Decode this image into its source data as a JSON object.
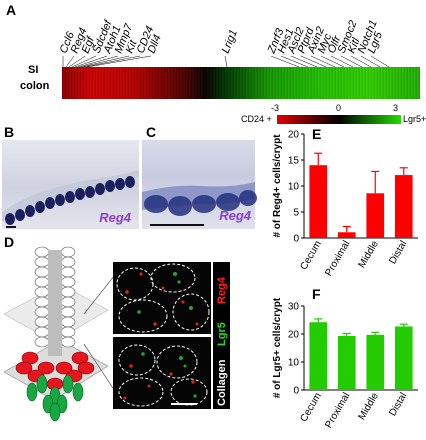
{
  "panels": {
    "A": "A",
    "B": "B",
    "C": "C",
    "D": "D",
    "E": "E",
    "F": "F"
  },
  "heatmap": {
    "row_si": "SI",
    "row_colon": "colon",
    "genes_left": [
      "Ccl6",
      "Reg4",
      "Egf",
      "Sdcdef",
      "Atoh1",
      "Mmp7",
      "Kit",
      "CD24",
      "Dll4"
    ],
    "gene_mid": "Lrig1",
    "genes_right": [
      "Znrf3",
      "Hes1",
      "Ascl2",
      "Ptprd",
      "Axin2",
      "Myc",
      "Olfr",
      "Smoc2",
      "Kitl",
      "Notch1",
      "Lgr5"
    ],
    "scale_left_label": "CD24 +",
    "scale_right_label": "Lgr5+",
    "scale_min": "-3",
    "scale_mid": "0",
    "scale_max": "3",
    "colors": {
      "low": "#d10000",
      "mid": "#000000",
      "high": "#22c400"
    }
  },
  "micrographs": {
    "B_label": "Reg4",
    "C_label": "Reg4",
    "D_channels": [
      "Reg4",
      "Lgr5",
      "Collagen"
    ],
    "D_channel_colors": [
      "#ff2020",
      "#22dd22",
      "#ffffff"
    ]
  },
  "chart_data": [
    {
      "type": "bar",
      "panel": "E",
      "categories": [
        "Cecum",
        "Proximal",
        "Middle",
        "Distal"
      ],
      "values": [
        14.0,
        1.1,
        8.6,
        12.1
      ],
      "errors": [
        2.3,
        1.1,
        4.2,
        1.4
      ],
      "ylabel": "# of Reg4+ cells/crypt",
      "ylim": [
        0,
        20
      ],
      "yticks": [
        0,
        5,
        10,
        15,
        20
      ],
      "color": "#ff0000"
    },
    {
      "type": "bar",
      "panel": "F",
      "categories": [
        "Cecum",
        "Proximal",
        "Middle",
        "Distal"
      ],
      "values": [
        24.2,
        19.3,
        19.7,
        22.7
      ],
      "errors": [
        1.2,
        0.9,
        0.9,
        0.8
      ],
      "ylabel": "# of Lgr5+ cells/crypt",
      "ylim": [
        0,
        30
      ],
      "yticks": [
        0,
        10,
        20,
        30
      ],
      "color": "#22cc00"
    }
  ]
}
